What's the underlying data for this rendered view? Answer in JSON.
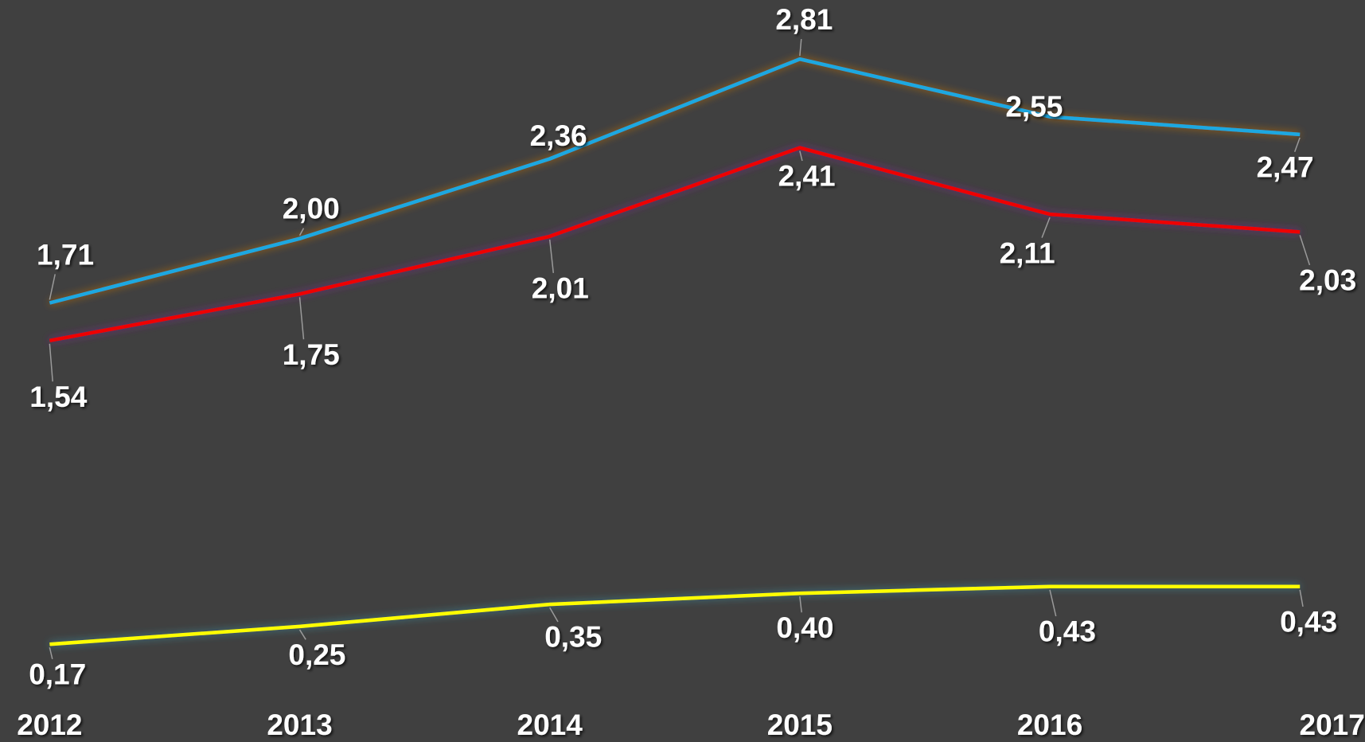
{
  "chart_data": {
    "type": "line",
    "categories": [
      "2012",
      "2013",
      "2014",
      "2015",
      "2016",
      "2017"
    ],
    "series": [
      {
        "color": "#1ba8e0",
        "glow": "#c07010",
        "values": [
          1.71,
          2.0,
          2.36,
          2.81,
          2.55,
          2.47
        ],
        "value_labels": [
          "1,71",
          "2,00",
          "2,36",
          "2,81",
          "2,55",
          "2,47"
        ]
      },
      {
        "color": "#ee0000",
        "glow": "#7a2a8a",
        "values": [
          1.54,
          1.75,
          2.01,
          2.41,
          2.11,
          2.03
        ],
        "value_labels": [
          "1,54",
          "1,75",
          "2,01",
          "2,41",
          "2,11",
          "2,03"
        ]
      },
      {
        "color": "#ffff00",
        "glow": "#3a8a9a",
        "values": [
          0.17,
          0.25,
          0.35,
          0.4,
          0.43,
          0.43
        ],
        "value_labels": [
          "0,17",
          "0,25",
          "0,35",
          "0,40",
          "0,43",
          "0,43"
        ]
      }
    ]
  }
}
